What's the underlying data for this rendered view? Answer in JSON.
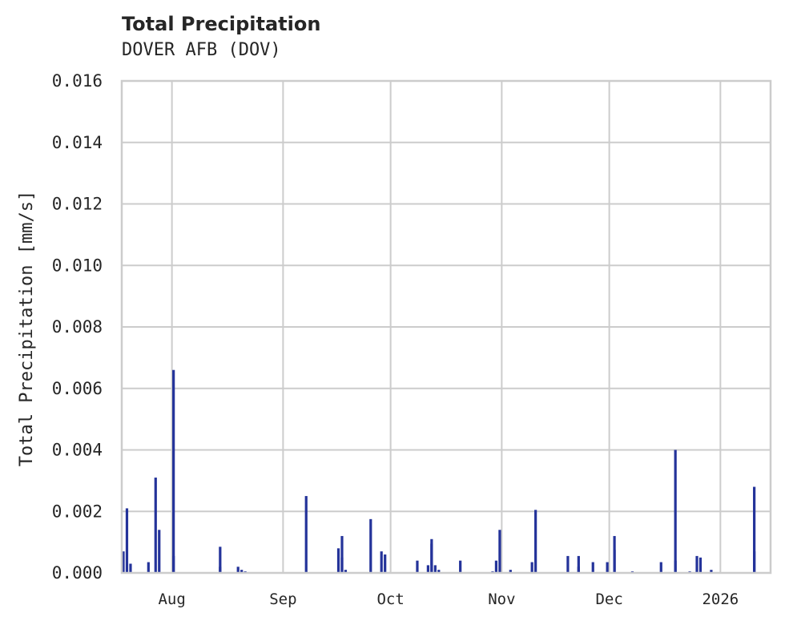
{
  "header": {
    "title": "Total Precipitation",
    "subtitle": "DOVER AFB (DOV)"
  },
  "colors": {
    "bar": "#24339a",
    "grid": "#cccccc",
    "axis_frame": "#cccccc",
    "text": "#262626"
  },
  "chart_data": {
    "type": "bar",
    "title": "Total Precipitation",
    "subtitle": "DOVER AFB (DOV)",
    "xlabel": "",
    "ylabel": "Total Precipitation [mm/s]",
    "ylim": [
      0.0,
      0.016
    ],
    "yticks": [
      "0.000",
      "0.002",
      "0.004",
      "0.006",
      "0.008",
      "0.010",
      "0.012",
      "0.014",
      "0.016"
    ],
    "xticks": [
      "Aug",
      "Sep",
      "Oct",
      "Nov",
      "Dec",
      "2026"
    ],
    "xrange": [
      "2025-07-18",
      "2026-01-15"
    ],
    "grid": true,
    "legend": null,
    "series": [
      {
        "name": "Total Precipitation",
        "points": [
          {
            "date": "2025-07-18",
            "value": 0.0007
          },
          {
            "date": "2025-07-19",
            "value": 0.0021
          },
          {
            "date": "2025-07-20",
            "value": 0.0003
          },
          {
            "date": "2025-07-25",
            "value": 0.00035
          },
          {
            "date": "2025-07-27",
            "value": 0.0031
          },
          {
            "date": "2025-07-28",
            "value": 0.0014
          },
          {
            "date": "2025-08-01",
            "value": 0.0066
          },
          {
            "date": "2025-08-01",
            "value": 0.00055
          },
          {
            "date": "2025-08-14",
            "value": 0.00085
          },
          {
            "date": "2025-08-14",
            "value": 0.0002
          },
          {
            "date": "2025-08-19",
            "value": 0.0002
          },
          {
            "date": "2025-08-20",
            "value": 0.0001
          },
          {
            "date": "2025-08-21",
            "value": 5e-05
          },
          {
            "date": "2025-09-07",
            "value": 0.0025
          },
          {
            "date": "2025-09-16",
            "value": 0.0008
          },
          {
            "date": "2025-09-17",
            "value": 0.0012
          },
          {
            "date": "2025-09-17",
            "value": 0.0005
          },
          {
            "date": "2025-09-18",
            "value": 0.0001
          },
          {
            "date": "2025-09-25",
            "value": 0.00175
          },
          {
            "date": "2025-09-28",
            "value": 0.0007
          },
          {
            "date": "2025-09-29",
            "value": 0.0006
          },
          {
            "date": "2025-10-08",
            "value": 0.0004
          },
          {
            "date": "2025-10-11",
            "value": 0.00025
          },
          {
            "date": "2025-10-12",
            "value": 0.00095
          },
          {
            "date": "2025-10-12",
            "value": 0.0011
          },
          {
            "date": "2025-10-13",
            "value": 0.00025
          },
          {
            "date": "2025-10-14",
            "value": 0.0001
          },
          {
            "date": "2025-10-20",
            "value": 0.0004
          },
          {
            "date": "2025-10-29",
            "value": 5e-05
          },
          {
            "date": "2025-10-30",
            "value": 0.0004
          },
          {
            "date": "2025-10-31",
            "value": 0.0014
          },
          {
            "date": "2025-11-03",
            "value": 0.0001
          },
          {
            "date": "2025-11-09",
            "value": 0.00035
          },
          {
            "date": "2025-11-10",
            "value": 0.00205
          },
          {
            "date": "2025-11-19",
            "value": 0.00055
          },
          {
            "date": "2025-11-22",
            "value": 0.00055
          },
          {
            "date": "2025-11-22",
            "value": 0.0002
          },
          {
            "date": "2025-11-26",
            "value": 0.00035
          },
          {
            "date": "2025-11-30",
            "value": 0.00035
          },
          {
            "date": "2025-12-02",
            "value": 0.00075
          },
          {
            "date": "2025-12-02",
            "value": 0.0012
          },
          {
            "date": "2025-12-07",
            "value": 5e-05
          },
          {
            "date": "2025-12-15",
            "value": 0.00035
          },
          {
            "date": "2025-12-19",
            "value": 0.0004
          },
          {
            "date": "2025-12-19",
            "value": 0.004
          },
          {
            "date": "2025-12-23",
            "value": 5e-05
          },
          {
            "date": "2025-12-25",
            "value": 0.00055
          },
          {
            "date": "2025-12-26",
            "value": 0.0005
          },
          {
            "date": "2025-12-29",
            "value": 0.0001
          },
          {
            "date": "2026-01-10",
            "value": 0.0028
          },
          {
            "date": "2026-01-10",
            "value": 0.0007
          }
        ]
      }
    ]
  }
}
